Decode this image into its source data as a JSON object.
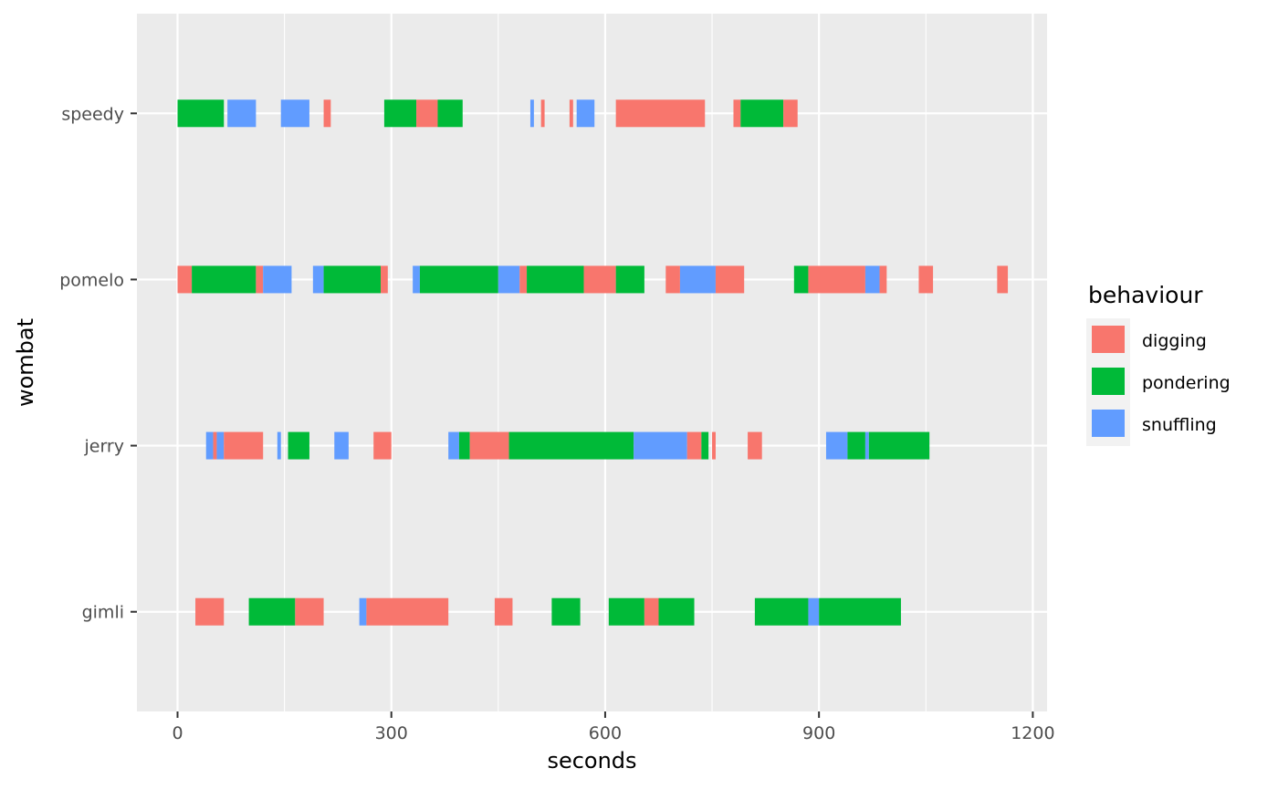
{
  "chart_data": {
    "type": "bar",
    "orientation": "horizontal-segments",
    "xlabel": "seconds",
    "ylabel": "wombat",
    "xlim": [
      -57,
      1220
    ],
    "xticks": [
      0,
      300,
      600,
      900,
      1200
    ],
    "categories": [
      "gimli",
      "jerry",
      "pomelo",
      "speedy"
    ],
    "grid": true,
    "legend": {
      "title": "behaviour",
      "position": "right",
      "entries": [
        "digging",
        "pondering",
        "snuffling"
      ]
    },
    "colors": {
      "digging": "#F8766D",
      "pondering": "#00BA38",
      "snuffling": "#619CFF"
    },
    "segments": [
      {
        "wombat": "speedy",
        "behaviour": "pondering",
        "start": 0,
        "end": 65
      },
      {
        "wombat": "speedy",
        "behaviour": "snuffling",
        "start": 70,
        "end": 110
      },
      {
        "wombat": "speedy",
        "behaviour": "snuffling",
        "start": 145,
        "end": 185
      },
      {
        "wombat": "speedy",
        "behaviour": "digging",
        "start": 205,
        "end": 215
      },
      {
        "wombat": "speedy",
        "behaviour": "pondering",
        "start": 290,
        "end": 335
      },
      {
        "wombat": "speedy",
        "behaviour": "digging",
        "start": 335,
        "end": 365
      },
      {
        "wombat": "speedy",
        "behaviour": "pondering",
        "start": 365,
        "end": 400
      },
      {
        "wombat": "speedy",
        "behaviour": "snuffling",
        "start": 495,
        "end": 500
      },
      {
        "wombat": "speedy",
        "behaviour": "digging",
        "start": 510,
        "end": 515
      },
      {
        "wombat": "speedy",
        "behaviour": "digging",
        "start": 550,
        "end": 555
      },
      {
        "wombat": "speedy",
        "behaviour": "snuffling",
        "start": 560,
        "end": 585
      },
      {
        "wombat": "speedy",
        "behaviour": "digging",
        "start": 615,
        "end": 740
      },
      {
        "wombat": "speedy",
        "behaviour": "digging",
        "start": 780,
        "end": 790
      },
      {
        "wombat": "speedy",
        "behaviour": "pondering",
        "start": 790,
        "end": 850
      },
      {
        "wombat": "speedy",
        "behaviour": "digging",
        "start": 850,
        "end": 870
      },
      {
        "wombat": "pomelo",
        "behaviour": "digging",
        "start": 0,
        "end": 20
      },
      {
        "wombat": "pomelo",
        "behaviour": "pondering",
        "start": 20,
        "end": 110
      },
      {
        "wombat": "pomelo",
        "behaviour": "digging",
        "start": 110,
        "end": 120
      },
      {
        "wombat": "pomelo",
        "behaviour": "snuffling",
        "start": 120,
        "end": 160
      },
      {
        "wombat": "pomelo",
        "behaviour": "snuffling",
        "start": 190,
        "end": 205
      },
      {
        "wombat": "pomelo",
        "behaviour": "pondering",
        "start": 205,
        "end": 285
      },
      {
        "wombat": "pomelo",
        "behaviour": "digging",
        "start": 285,
        "end": 295
      },
      {
        "wombat": "pomelo",
        "behaviour": "snuffling",
        "start": 330,
        "end": 340
      },
      {
        "wombat": "pomelo",
        "behaviour": "pondering",
        "start": 340,
        "end": 450
      },
      {
        "wombat": "pomelo",
        "behaviour": "snuffling",
        "start": 450,
        "end": 480
      },
      {
        "wombat": "pomelo",
        "behaviour": "digging",
        "start": 480,
        "end": 490
      },
      {
        "wombat": "pomelo",
        "behaviour": "pondering",
        "start": 490,
        "end": 570
      },
      {
        "wombat": "pomelo",
        "behaviour": "digging",
        "start": 570,
        "end": 615
      },
      {
        "wombat": "pomelo",
        "behaviour": "pondering",
        "start": 615,
        "end": 655
      },
      {
        "wombat": "pomelo",
        "behaviour": "digging",
        "start": 685,
        "end": 705
      },
      {
        "wombat": "pomelo",
        "behaviour": "snuffling",
        "start": 705,
        "end": 755
      },
      {
        "wombat": "pomelo",
        "behaviour": "digging",
        "start": 755,
        "end": 795
      },
      {
        "wombat": "pomelo",
        "behaviour": "pondering",
        "start": 865,
        "end": 885
      },
      {
        "wombat": "pomelo",
        "behaviour": "digging",
        "start": 885,
        "end": 965
      },
      {
        "wombat": "pomelo",
        "behaviour": "snuffling",
        "start": 965,
        "end": 985
      },
      {
        "wombat": "pomelo",
        "behaviour": "digging",
        "start": 985,
        "end": 995
      },
      {
        "wombat": "pomelo",
        "behaviour": "digging",
        "start": 1040,
        "end": 1060
      },
      {
        "wombat": "pomelo",
        "behaviour": "digging",
        "start": 1150,
        "end": 1165
      },
      {
        "wombat": "jerry",
        "behaviour": "snuffling",
        "start": 40,
        "end": 50
      },
      {
        "wombat": "jerry",
        "behaviour": "digging",
        "start": 50,
        "end": 55
      },
      {
        "wombat": "jerry",
        "behaviour": "snuffling",
        "start": 55,
        "end": 65
      },
      {
        "wombat": "jerry",
        "behaviour": "digging",
        "start": 65,
        "end": 120
      },
      {
        "wombat": "jerry",
        "behaviour": "snuffling",
        "start": 140,
        "end": 145
      },
      {
        "wombat": "jerry",
        "behaviour": "pondering",
        "start": 155,
        "end": 185
      },
      {
        "wombat": "jerry",
        "behaviour": "snuffling",
        "start": 220,
        "end": 240
      },
      {
        "wombat": "jerry",
        "behaviour": "digging",
        "start": 275,
        "end": 300
      },
      {
        "wombat": "jerry",
        "behaviour": "snuffling",
        "start": 380,
        "end": 395
      },
      {
        "wombat": "jerry",
        "behaviour": "pondering",
        "start": 395,
        "end": 410
      },
      {
        "wombat": "jerry",
        "behaviour": "digging",
        "start": 410,
        "end": 465
      },
      {
        "wombat": "jerry",
        "behaviour": "pondering",
        "start": 465,
        "end": 640
      },
      {
        "wombat": "jerry",
        "behaviour": "snuffling",
        "start": 640,
        "end": 715
      },
      {
        "wombat": "jerry",
        "behaviour": "digging",
        "start": 715,
        "end": 735
      },
      {
        "wombat": "jerry",
        "behaviour": "pondering",
        "start": 735,
        "end": 745
      },
      {
        "wombat": "jerry",
        "behaviour": "digging",
        "start": 750,
        "end": 755
      },
      {
        "wombat": "jerry",
        "behaviour": "digging",
        "start": 800,
        "end": 820
      },
      {
        "wombat": "jerry",
        "behaviour": "snuffling",
        "start": 910,
        "end": 940
      },
      {
        "wombat": "jerry",
        "behaviour": "pondering",
        "start": 940,
        "end": 965
      },
      {
        "wombat": "jerry",
        "behaviour": "snuffling",
        "start": 965,
        "end": 970
      },
      {
        "wombat": "jerry",
        "behaviour": "pondering",
        "start": 970,
        "end": 1055
      },
      {
        "wombat": "gimli",
        "behaviour": "digging",
        "start": 25,
        "end": 65
      },
      {
        "wombat": "gimli",
        "behaviour": "pondering",
        "start": 100,
        "end": 165
      },
      {
        "wombat": "gimli",
        "behaviour": "digging",
        "start": 165,
        "end": 205
      },
      {
        "wombat": "gimli",
        "behaviour": "snuffling",
        "start": 255,
        "end": 265
      },
      {
        "wombat": "gimli",
        "behaviour": "digging",
        "start": 265,
        "end": 380
      },
      {
        "wombat": "gimli",
        "behaviour": "digging",
        "start": 445,
        "end": 470
      },
      {
        "wombat": "gimli",
        "behaviour": "pondering",
        "start": 525,
        "end": 565
      },
      {
        "wombat": "gimli",
        "behaviour": "pondering",
        "start": 605,
        "end": 655
      },
      {
        "wombat": "gimli",
        "behaviour": "digging",
        "start": 655,
        "end": 675
      },
      {
        "wombat": "gimli",
        "behaviour": "pondering",
        "start": 675,
        "end": 725
      },
      {
        "wombat": "gimli",
        "behaviour": "pondering",
        "start": 810,
        "end": 885
      },
      {
        "wombat": "gimli",
        "behaviour": "snuffling",
        "start": 885,
        "end": 900
      },
      {
        "wombat": "gimli",
        "behaviour": "pondering",
        "start": 900,
        "end": 1015
      }
    ]
  }
}
